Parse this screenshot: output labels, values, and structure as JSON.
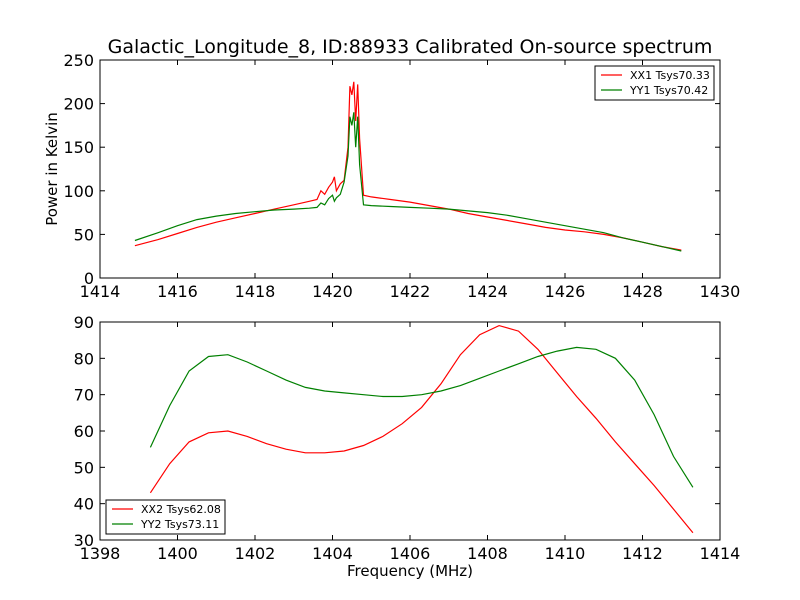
{
  "figure": {
    "title": "Galactic_Longitude_8, ID:88933 Calibrated On-source spectrum",
    "background": "#ffffff"
  },
  "colors": {
    "red": "#ff0000",
    "green": "#008000"
  },
  "chart_data": [
    {
      "type": "line",
      "title": "Galactic_Longitude_8, ID:88933 Calibrated On-source spectrum",
      "xlabel": "",
      "ylabel": "Power in Kelvin",
      "xlim": [
        1414,
        1430
      ],
      "ylim": [
        0,
        250
      ],
      "xticks": [
        1414,
        1416,
        1418,
        1420,
        1422,
        1424,
        1426,
        1428,
        1430
      ],
      "yticks": [
        0,
        50,
        100,
        150,
        200,
        250
      ],
      "grid": false,
      "legend": "top-right",
      "series": [
        {
          "name": "XX1 Tsys70.33",
          "color": "#ff0000",
          "x": [
            1414.9,
            1415.5,
            1416.0,
            1416.5,
            1417.0,
            1417.5,
            1418.0,
            1418.5,
            1419.0,
            1419.4,
            1419.6,
            1419.7,
            1419.8,
            1419.9,
            1420.0,
            1420.05,
            1420.1,
            1420.2,
            1420.3,
            1420.4,
            1420.45,
            1420.5,
            1420.55,
            1420.6,
            1420.65,
            1420.7,
            1420.8,
            1421.0,
            1421.5,
            1422.0,
            1422.5,
            1423.0,
            1423.5,
            1424.0,
            1424.5,
            1425.0,
            1425.5,
            1426.0,
            1426.5,
            1427.0,
            1427.5,
            1428.0,
            1428.5,
            1429.0
          ],
          "y": [
            37,
            44,
            51,
            58,
            64,
            69,
            74,
            79,
            84,
            88,
            90,
            100,
            96,
            104,
            110,
            116,
            100,
            108,
            112,
            150,
            220,
            210,
            225,
            180,
            222,
            160,
            95,
            93,
            90,
            87,
            83,
            79,
            74,
            70,
            66,
            62,
            58,
            55,
            53,
            50,
            46,
            41,
            36,
            32
          ]
        },
        {
          "name": "YY1 Tsys70.42",
          "color": "#008000",
          "x": [
            1414.9,
            1415.5,
            1416.0,
            1416.5,
            1417.0,
            1417.5,
            1418.0,
            1418.5,
            1419.0,
            1419.4,
            1419.6,
            1419.7,
            1419.8,
            1419.9,
            1420.0,
            1420.05,
            1420.1,
            1420.2,
            1420.3,
            1420.4,
            1420.45,
            1420.5,
            1420.55,
            1420.6,
            1420.65,
            1420.7,
            1420.8,
            1421.0,
            1421.5,
            1422.0,
            1422.5,
            1423.0,
            1423.5,
            1424.0,
            1424.5,
            1425.0,
            1425.5,
            1426.0,
            1426.5,
            1427.0,
            1427.5,
            1428.0,
            1428.5,
            1429.0
          ],
          "y": [
            43,
            52,
            60,
            67,
            71,
            74,
            76,
            78,
            79,
            80,
            81,
            86,
            84,
            91,
            95,
            88,
            92,
            96,
            110,
            140,
            185,
            175,
            190,
            150,
            185,
            130,
            84,
            83,
            82,
            81,
            80,
            79,
            77,
            75,
            72,
            68,
            64,
            60,
            56,
            52,
            46,
            41,
            36,
            31
          ]
        }
      ]
    },
    {
      "type": "line",
      "title": "",
      "xlabel": "Frequency (MHz)",
      "ylabel": "",
      "xlim": [
        1398,
        1414
      ],
      "ylim": [
        30,
        90
      ],
      "xticks": [
        1398,
        1400,
        1402,
        1404,
        1406,
        1408,
        1410,
        1412,
        1414
      ],
      "yticks": [
        30,
        40,
        50,
        60,
        70,
        80,
        90
      ],
      "grid": false,
      "legend": "bottom-left",
      "series": [
        {
          "name": "XX2 Tsys62.08",
          "color": "#ff0000",
          "x": [
            1399.3,
            1399.8,
            1400.3,
            1400.8,
            1401.3,
            1401.8,
            1402.3,
            1402.8,
            1403.3,
            1403.8,
            1404.3,
            1404.8,
            1405.3,
            1405.8,
            1406.3,
            1406.8,
            1407.3,
            1407.8,
            1408.3,
            1408.8,
            1409.3,
            1409.8,
            1410.3,
            1410.8,
            1411.3,
            1411.8,
            1412.3,
            1412.8,
            1413.3
          ],
          "y": [
            43,
            51,
            57,
            59.5,
            60,
            58.5,
            56.5,
            55,
            54,
            54,
            54.5,
            56,
            58.5,
            62,
            66.5,
            73,
            81,
            86.5,
            89,
            87.5,
            82.5,
            76,
            69.5,
            63.5,
            57,
            51,
            45,
            38.5,
            32
          ]
        },
        {
          "name": "YY2 Tsys73.11",
          "color": "#008000",
          "x": [
            1399.3,
            1399.8,
            1400.3,
            1400.8,
            1401.3,
            1401.8,
            1402.3,
            1402.8,
            1403.3,
            1403.8,
            1404.3,
            1404.8,
            1405.3,
            1405.8,
            1406.3,
            1406.8,
            1407.3,
            1407.8,
            1408.3,
            1408.8,
            1409.3,
            1409.8,
            1410.3,
            1410.8,
            1411.3,
            1411.8,
            1412.3,
            1412.8,
            1413.3
          ],
          "y": [
            55.5,
            67,
            76.5,
            80.5,
            81,
            79,
            76.5,
            74,
            72,
            71,
            70.5,
            70,
            69.5,
            69.5,
            70,
            71,
            72.5,
            74.5,
            76.5,
            78.5,
            80.5,
            82,
            83,
            82.5,
            80,
            74,
            64.5,
            53,
            44.5
          ]
        }
      ]
    }
  ]
}
